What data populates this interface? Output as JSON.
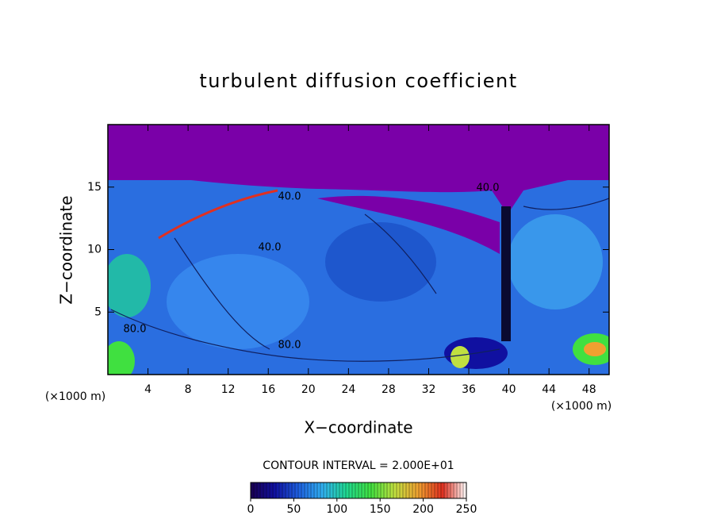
{
  "chart_data": {
    "type": "contour",
    "title": "turbulent diffusion coefficient",
    "x_label": "X−coordinate",
    "y_label": "Z−coordinate",
    "x_unit": "(×1000 m)",
    "y_unit": "(×1000 m)",
    "xlim": [
      0,
      50
    ],
    "xticks": [
      4,
      8,
      12,
      16,
      20,
      24,
      28,
      32,
      36,
      40,
      44,
      48
    ],
    "ylim": [
      0,
      20
    ],
    "yticks": [
      5,
      10,
      15
    ],
    "contour_labels": [
      "40.0",
      "40.0",
      "40.0",
      "80.0",
      "80.0"
    ],
    "contour_interval": "CONTOUR INTERVAL = 2.000E+01",
    "colorbar": {
      "range": [
        0,
        250
      ],
      "ticks": [
        0,
        50,
        100,
        150,
        200,
        250
      ],
      "colormap": [
        "#1a0050",
        "#1010a0",
        "#1e60e0",
        "#30b0f0",
        "#20d890",
        "#40e040",
        "#c0e040",
        "#f0a030",
        "#e03020",
        "#ffffff"
      ]
    }
  }
}
